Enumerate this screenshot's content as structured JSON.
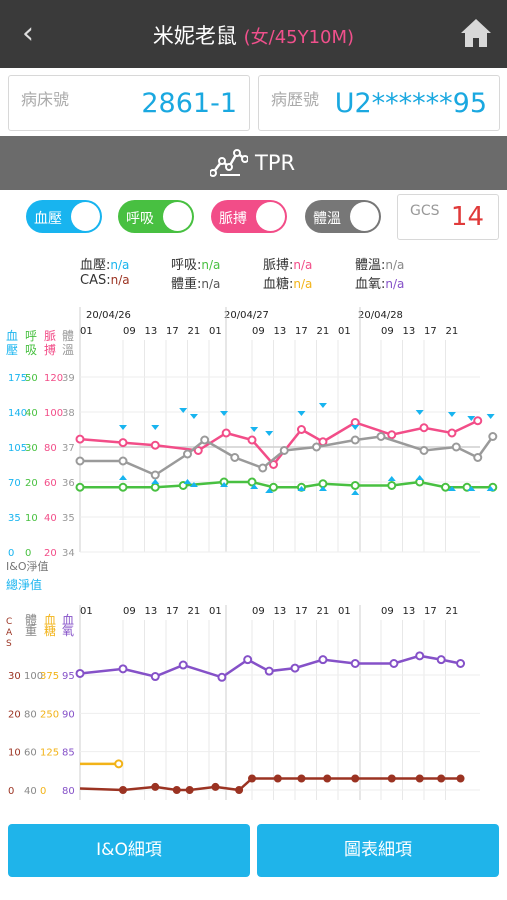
{
  "header": {
    "back_icon": "chevron-left-icon",
    "name": "米妮老鼠",
    "sub": "(女/45Y10M)",
    "home_icon": "home-icon"
  },
  "bed": {
    "label": "病床號",
    "value": "2861-1"
  },
  "record": {
    "label": "病歷號",
    "value": "U2******95"
  },
  "section": {
    "title": "TPR",
    "icon": "chart-line-icon"
  },
  "toggles": [
    {
      "label": "血壓",
      "color": "#18b4ef",
      "on": true
    },
    {
      "label": "呼吸",
      "color": "#48c041",
      "on": true
    },
    {
      "label": "脈搏",
      "color": "#f24d88",
      "on": true
    },
    {
      "label": "體溫",
      "color": "#777777",
      "on": true
    }
  ],
  "gcs": {
    "label": "GCS",
    "value": "14"
  },
  "legend": {
    "bp": "血壓:",
    "bp_v": "n/a",
    "resp": "呼吸:",
    "resp_v": "n/a",
    "pulse": "脈搏:",
    "pulse_v": "n/a",
    "temp": "體溫:",
    "temp_v": "n/a",
    "cas": "CAS:",
    "cas_v": "n/a",
    "weight": "體重:",
    "weight_v": "n/a",
    "sugar": "血糖:",
    "sugar_v": "n/a",
    "oxy": "血氧:",
    "oxy_v": "n/a"
  },
  "chart_data": [
    {
      "type": "line",
      "dates": [
        "20/04/26",
        "20/04/27",
        "20/04/28"
      ],
      "x_ticks": [
        "01",
        "09",
        "13",
        "17",
        "21",
        "01",
        "09",
        "13",
        "17",
        "21",
        "01",
        "09",
        "13",
        "17",
        "21"
      ],
      "axis_headers": [
        [
          "血",
          "壓"
        ],
        [
          "呼",
          "吸"
        ],
        [
          "脈",
          "搏"
        ],
        [
          "體",
          "溫"
        ]
      ],
      "axes": {
        "bp": [
          175,
          140,
          105,
          70,
          35,
          0
        ],
        "resp": [
          50,
          40,
          30,
          20,
          10,
          0
        ],
        "pulse": [
          120,
          100,
          80,
          60,
          40,
          20
        ],
        "temp": [
          39,
          38,
          37,
          36,
          35,
          34
        ]
      },
      "io_labels": [
        "I&O淨值",
        "總淨值"
      ],
      "series": [
        {
          "name": "脈搏",
          "color": "#f24d88",
          "values": [
            [
              0,
              84.5
            ],
            [
              2,
              82.5
            ],
            [
              3.5,
              81
            ],
            [
              5.5,
              78
            ],
            [
              6.8,
              88
            ],
            [
              8,
              84
            ],
            [
              9,
              70
            ],
            [
              10.3,
              90
            ],
            [
              11.3,
              83
            ],
            [
              12.8,
              94
            ],
            [
              14.5,
              87
            ],
            [
              16,
              91
            ],
            [
              17.3,
              88
            ],
            [
              18.5,
              95
            ]
          ]
        },
        {
          "name": "體溫",
          "color": "#9a9a9a",
          "values": [
            [
              0,
              36.6
            ],
            [
              2,
              36.6
            ],
            [
              3.5,
              36.2
            ],
            [
              5,
              36.8
            ],
            [
              5.8,
              37.2
            ],
            [
              7.2,
              36.7
            ],
            [
              8.5,
              36.4
            ],
            [
              9.5,
              36.9
            ],
            [
              11,
              37
            ],
            [
              12.8,
              37.2
            ],
            [
              14,
              37.3
            ],
            [
              16,
              36.9
            ],
            [
              17.5,
              37
            ],
            [
              18.5,
              36.7
            ],
            [
              19.2,
              37.3
            ]
          ]
        },
        {
          "name": "呼吸",
          "color": "#48c041",
          "values": [
            [
              0,
              18.5
            ],
            [
              2,
              18.5
            ],
            [
              3.5,
              18.5
            ],
            [
              4.8,
              19
            ],
            [
              6.7,
              20
            ],
            [
              8,
              20
            ],
            [
              9,
              18.5
            ],
            [
              10.3,
              18.5
            ],
            [
              11.3,
              19.5
            ],
            [
              12.8,
              19
            ],
            [
              14.5,
              19
            ],
            [
              15.8,
              20
            ],
            [
              17,
              18.5
            ],
            [
              18,
              18.5
            ],
            [
              19.2,
              18.5
            ]
          ]
        },
        {
          "name": "血壓",
          "color": "#18b4ef",
          "values": [
            [
              2,
              124
            ],
            [
              3.5,
              124
            ],
            [
              4.8,
              141
            ],
            [
              5.3,
              135
            ],
            [
              6.7,
              138
            ],
            [
              8.1,
              122
            ],
            [
              8.8,
              118
            ],
            [
              10.3,
              138
            ],
            [
              11.3,
              146
            ],
            [
              12.8,
              124
            ],
            [
              15.8,
              139
            ],
            [
              17.3,
              137
            ],
            [
              18.2,
              133
            ],
            [
              19.1,
              135
            ]
          ]
        },
        {
          "name": "血壓-low",
          "color": "#18b4ef",
          "values": [
            [
              2,
              75
            ],
            [
              3.5,
              71
            ],
            [
              5,
              71
            ],
            [
              5.3,
              68
            ],
            [
              6.7,
              68
            ],
            [
              8.1,
              66
            ],
            [
              8.8,
              62
            ],
            [
              10.3,
              64
            ],
            [
              11.3,
              64
            ],
            [
              12.8,
              60
            ],
            [
              14.5,
              74
            ],
            [
              15.8,
              75
            ],
            [
              17.3,
              64
            ],
            [
              18.2,
              64
            ],
            [
              19.1,
              64
            ]
          ]
        }
      ]
    },
    {
      "type": "line",
      "x_ticks": [
        "01",
        "09",
        "13",
        "17",
        "21",
        "01",
        "09",
        "13",
        "17",
        "21",
        "01",
        "09",
        "13",
        "17",
        "21"
      ],
      "axis_headers": [
        [
          "C",
          "A",
          "S"
        ],
        [
          "體",
          "重"
        ],
        [
          "血",
          "糖"
        ],
        [
          "血",
          "氧"
        ]
      ],
      "axes": {
        "cas": [
          30,
          20,
          10,
          0
        ],
        "weight": [
          100,
          80,
          60,
          40
        ],
        "sugar": [
          375,
          250,
          125,
          0
        ],
        "oxy": [
          95,
          90,
          85,
          80
        ]
      },
      "series": [
        {
          "name": "血氧",
          "color": "#8551c8",
          "values": [
            [
              0,
              95.2
            ],
            [
              2,
              95.8
            ],
            [
              3.5,
              94.8
            ],
            [
              4.8,
              96.3
            ],
            [
              6.6,
              94.7
            ],
            [
              7.8,
              97
            ],
            [
              8.8,
              95.5
            ],
            [
              10,
              95.9
            ],
            [
              11.3,
              97
            ],
            [
              12.8,
              96.5
            ],
            [
              14.6,
              96.5
            ],
            [
              15.8,
              97.5
            ],
            [
              16.8,
              97
            ],
            [
              17.7,
              96.5
            ]
          ]
        },
        {
          "name": "血糖",
          "color": "#f2b318",
          "values": [
            [
              0,
              85.2
            ],
            [
              1.8,
              85.2
            ]
          ]
        },
        {
          "name": "CAS",
          "color": "#9b3322",
          "values": [
            [
              0,
              0.4
            ],
            [
              2,
              0
            ],
            [
              3.5,
              0.8
            ],
            [
              4.5,
              0
            ],
            [
              5.1,
              0
            ],
            [
              6.3,
              0.8
            ],
            [
              7.4,
              0
            ],
            [
              8,
              3
            ],
            [
              9.2,
              3
            ],
            [
              10.3,
              3
            ],
            [
              11.5,
              3
            ],
            [
              12.8,
              3
            ],
            [
              14.5,
              3
            ],
            [
              15.8,
              3
            ],
            [
              16.8,
              3
            ],
            [
              17.7,
              3
            ]
          ]
        }
      ]
    }
  ],
  "buttons": {
    "io": "I&O細項",
    "chart": "圖表細項"
  }
}
